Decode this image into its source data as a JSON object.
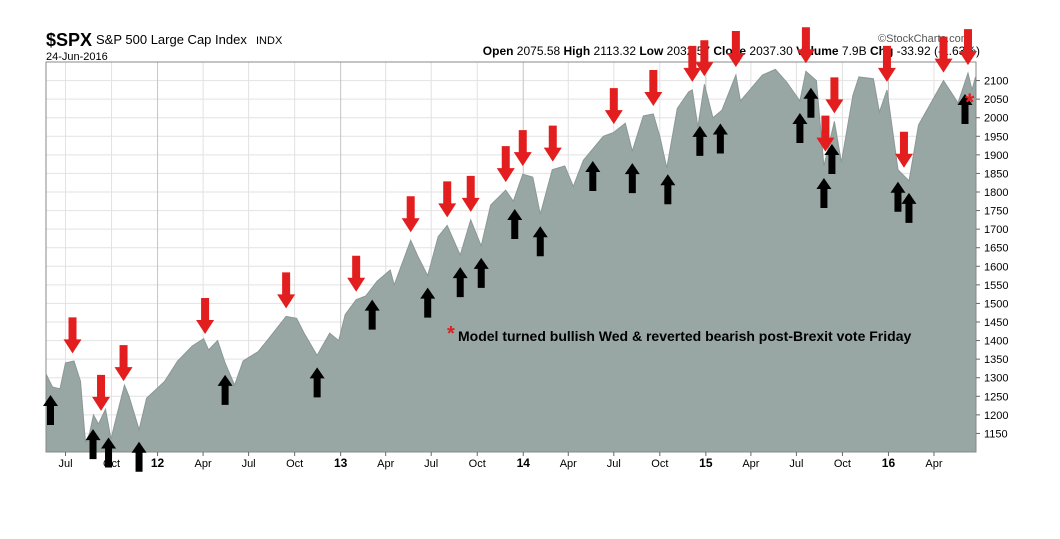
{
  "header": {
    "symbol": "$SPX",
    "name": "S&P 500 Large Cap Index",
    "exchange": "INDX",
    "date": "24-Jun-2016",
    "watermark": "©StockCharts.com",
    "stats": [
      {
        "label": "Open",
        "value": "2075.58"
      },
      {
        "label": "High",
        "value": "2113.32"
      },
      {
        "label": "Low",
        "value": "2032.57"
      },
      {
        "label": "Close",
        "value": "2037.30"
      },
      {
        "label": "Volume",
        "value": "7.9B"
      },
      {
        "label": "Chg",
        "value": "-33.92 (-1.63%)"
      }
    ]
  },
  "annotation": {
    "asterisk": "*",
    "text": "Model turned bullish Wed & reverted bearish post-Brexit vote Friday"
  },
  "colors": {
    "area_fill": "#98a6a4",
    "area_line": "#8a9896",
    "bearish_arrow": "#e31e1e",
    "bullish_arrow": "#000000",
    "grid": "#e2e2e2",
    "year_grid": "#c4c4c4"
  },
  "chart_data": {
    "type": "area",
    "ylim": [
      1100,
      2150
    ],
    "y_ticks": [
      1150,
      1200,
      1250,
      1300,
      1350,
      1400,
      1450,
      1500,
      1550,
      1600,
      1650,
      1700,
      1750,
      1800,
      1850,
      1900,
      1950,
      2000,
      2050,
      2100
    ],
    "x_tick_labels": [
      {
        "label": "Jul",
        "date": "2011-07-01"
      },
      {
        "label": "Oct",
        "date": "2011-10-01"
      },
      {
        "label": "12",
        "date": "2012-01-01"
      },
      {
        "label": "Apr",
        "date": "2012-04-01"
      },
      {
        "label": "Jul",
        "date": "2012-07-01"
      },
      {
        "label": "Oct",
        "date": "2012-10-01"
      },
      {
        "label": "13",
        "date": "2013-01-01"
      },
      {
        "label": "Apr",
        "date": "2013-04-01"
      },
      {
        "label": "Jul",
        "date": "2013-07-01"
      },
      {
        "label": "Oct",
        "date": "2013-10-01"
      },
      {
        "label": "14",
        "date": "2014-01-01"
      },
      {
        "label": "Apr",
        "date": "2014-04-01"
      },
      {
        "label": "Jul",
        "date": "2014-07-01"
      },
      {
        "label": "Oct",
        "date": "2014-10-01"
      },
      {
        "label": "15",
        "date": "2015-01-01"
      },
      {
        "label": "Apr",
        "date": "2015-04-01"
      },
      {
        "label": "Jul",
        "date": "2015-07-01"
      },
      {
        "label": "Oct",
        "date": "2015-10-01"
      },
      {
        "label": "16",
        "date": "2016-01-01"
      },
      {
        "label": "Apr",
        "date": "2016-04-01"
      }
    ],
    "x_range": [
      "2011-05-23",
      "2016-06-24"
    ],
    "series": [
      {
        "points": [
          [
            "2011-05-23",
            1310
          ],
          [
            "2011-06-05",
            1275
          ],
          [
            "2011-06-20",
            1270
          ],
          [
            "2011-07-01",
            1340
          ],
          [
            "2011-07-18",
            1345
          ],
          [
            "2011-07-31",
            1290
          ],
          [
            "2011-08-10",
            1125
          ],
          [
            "2011-08-18",
            1150
          ],
          [
            "2011-08-26",
            1200
          ],
          [
            "2011-09-05",
            1175
          ],
          [
            "2011-09-19",
            1215
          ],
          [
            "2011-09-30",
            1135
          ],
          [
            "2011-10-10",
            1190
          ],
          [
            "2011-10-27",
            1280
          ],
          [
            "2011-11-05",
            1250
          ],
          [
            "2011-11-25",
            1160
          ],
          [
            "2011-12-10",
            1245
          ],
          [
            "2011-12-26",
            1265
          ],
          [
            "2012-01-15",
            1290
          ],
          [
            "2012-02-10",
            1345
          ],
          [
            "2012-03-10",
            1385
          ],
          [
            "2012-04-02",
            1405
          ],
          [
            "2012-04-12",
            1375
          ],
          [
            "2012-04-30",
            1400
          ],
          [
            "2012-05-15",
            1340
          ],
          [
            "2012-06-03",
            1280
          ],
          [
            "2012-06-20",
            1345
          ],
          [
            "2012-07-20",
            1370
          ],
          [
            "2012-08-10",
            1405
          ],
          [
            "2012-09-14",
            1465
          ],
          [
            "2012-10-05",
            1460
          ],
          [
            "2012-10-20",
            1420
          ],
          [
            "2012-11-15",
            1360
          ],
          [
            "2012-12-10",
            1420
          ],
          [
            "2012-12-28",
            1400
          ],
          [
            "2013-01-10",
            1470
          ],
          [
            "2013-02-01",
            1510
          ],
          [
            "2013-02-20",
            1520
          ],
          [
            "2013-03-15",
            1560
          ],
          [
            "2013-04-10",
            1590
          ],
          [
            "2013-04-18",
            1550
          ],
          [
            "2013-05-21",
            1670
          ],
          [
            "2013-06-05",
            1625
          ],
          [
            "2013-06-24",
            1575
          ],
          [
            "2013-07-15",
            1680
          ],
          [
            "2013-08-02",
            1710
          ],
          [
            "2013-08-28",
            1630
          ],
          [
            "2013-09-18",
            1725
          ],
          [
            "2013-10-09",
            1655
          ],
          [
            "2013-10-28",
            1765
          ],
          [
            "2013-11-27",
            1805
          ],
          [
            "2013-12-12",
            1775
          ],
          [
            "2013-12-31",
            1848
          ],
          [
            "2014-01-20",
            1840
          ],
          [
            "2014-02-04",
            1740
          ],
          [
            "2014-02-28",
            1860
          ],
          [
            "2014-03-25",
            1870
          ],
          [
            "2014-04-11",
            1815
          ],
          [
            "2014-05-01",
            1885
          ],
          [
            "2014-06-10",
            1950
          ],
          [
            "2014-06-30",
            1960
          ],
          [
            "2014-07-24",
            1985
          ],
          [
            "2014-08-07",
            1910
          ],
          [
            "2014-08-29",
            2005
          ],
          [
            "2014-09-18",
            2010
          ],
          [
            "2014-10-01",
            1950
          ],
          [
            "2014-10-15",
            1865
          ],
          [
            "2014-11-05",
            2025
          ],
          [
            "2014-11-28",
            2070
          ],
          [
            "2014-12-05",
            2075
          ],
          [
            "2014-12-16",
            1975
          ],
          [
            "2014-12-29",
            2090
          ],
          [
            "2015-01-15",
            2000
          ],
          [
            "2015-02-02",
            2020
          ],
          [
            "2015-03-02",
            2115
          ],
          [
            "2015-03-11",
            2045
          ],
          [
            "2015-04-24",
            2115
          ],
          [
            "2015-05-20",
            2130
          ],
          [
            "2015-06-12",
            2095
          ],
          [
            "2015-07-08",
            2045
          ],
          [
            "2015-07-20",
            2125
          ],
          [
            "2015-08-10",
            2100
          ],
          [
            "2015-08-25",
            1870
          ],
          [
            "2015-09-15",
            1990
          ],
          [
            "2015-09-29",
            1880
          ],
          [
            "2015-10-22",
            2060
          ],
          [
            "2015-11-03",
            2110
          ],
          [
            "2015-12-02",
            2105
          ],
          [
            "2015-12-14",
            2015
          ],
          [
            "2015-12-29",
            2075
          ],
          [
            "2016-01-20",
            1860
          ],
          [
            "2016-02-11",
            1830
          ],
          [
            "2016-03-01",
            1980
          ],
          [
            "2016-04-20",
            2100
          ],
          [
            "2016-05-19",
            2040
          ],
          [
            "2016-06-08",
            2120
          ],
          [
            "2016-06-16",
            2075
          ],
          [
            "2016-06-23",
            2110
          ],
          [
            "2016-06-24",
            2037
          ]
        ]
      }
    ],
    "markers": {
      "bearish_red_down_arrows": [
        "2011-07-15",
        "2011-09-10",
        "2011-10-25",
        "2012-04-05",
        "2012-09-14",
        "2013-02-01",
        "2013-05-21",
        "2013-08-02",
        "2013-09-18",
        "2013-11-27",
        "2013-12-31",
        "2014-03-01",
        "2014-07-01",
        "2014-09-18",
        "2014-12-05",
        "2014-12-29",
        "2015-03-02",
        "2015-07-20",
        "2015-08-28",
        "2015-09-15",
        "2015-12-29",
        "2016-02-01",
        "2016-04-20",
        "2016-06-08"
      ],
      "bullish_black_up_arrows": [
        "2011-06-01",
        "2011-08-25",
        "2011-09-25",
        "2011-11-25",
        "2012-05-15",
        "2012-11-15",
        "2013-03-05",
        "2013-06-24",
        "2013-08-28",
        "2013-10-09",
        "2013-12-15",
        "2014-02-04",
        "2014-05-20",
        "2014-08-07",
        "2014-10-17",
        "2014-12-20",
        "2015-01-30",
        "2015-07-08",
        "2015-07-30",
        "2015-08-25",
        "2015-09-10",
        "2016-01-20",
        "2016-02-11",
        "2016-06-02"
      ],
      "model_asterisk_date": "2016-06-24"
    }
  }
}
